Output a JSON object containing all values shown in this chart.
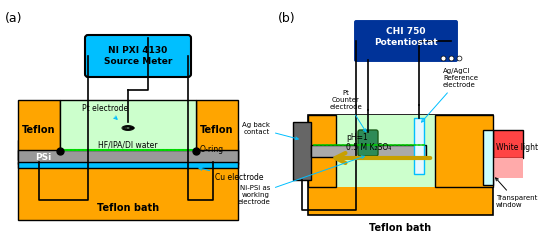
{
  "fig_width": 5.5,
  "fig_height": 2.35,
  "dpi": 100,
  "bg_color": "#ffffff",
  "label_a": "(a)",
  "label_b": "(b)",
  "panel_a": {
    "teflon_bath_color": "#FFA500",
    "teflon_inner_color": "#90EE90",
    "psi_color": "#808080",
    "cu_color": "#00BFFF",
    "source_meter_box_color": "#00BFFF",
    "source_meter_text": "NI PXI 4130\nSource Meter",
    "teflon_left_text": "Teflon",
    "teflon_right_text": "Teflon",
    "teflon_bath_text": "Teflon bath",
    "psi_text": "PSi",
    "hf_text": "HF/IPA/DI water",
    "pt_electrode_text": "Pt electrode",
    "oring_text": "O-ring",
    "cu_electrode_text": "Cu electrode",
    "green_hatch_color": "#00FF00"
  },
  "panel_b": {
    "teflon_bath_color": "#FFA500",
    "solution_color": "#90EE90",
    "potentiostat_box_color": "#003399",
    "potentiostat_text": "CHI 750\nPotentiostat",
    "pt_counter_text": "Pt\nCounter\nelectrode",
    "agagcl_text": "Ag/AgCl\nReference\nelectrode",
    "ag_back_text": "Ag back\ncontact",
    "nipsi_text": "Ni-PSi as\nworking\nelectrode",
    "ph_text": "pH=1\n0.5 M K₂SO₄",
    "teflon_bath_label": "Teflon bath",
    "white_light_text": "White light",
    "transparent_window_text": "Transparent\nwindow",
    "arrow_color": "#C8A000",
    "red_light_color": "#FF4444",
    "pink_light_color": "#FFAAAA",
    "pt_electrode_color": "#2E8B57",
    "agagcl_tube_color": "#00BFFF",
    "ag_contact_color": "#808080"
  }
}
